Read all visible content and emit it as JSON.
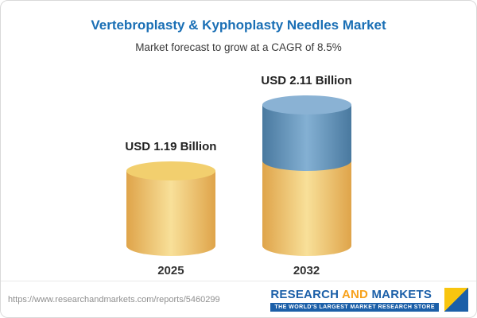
{
  "header": {
    "title": "Vertebroplasty & Kyphoplasty Needles Market",
    "subtitle": "Market forecast to grow at a CAGR of 8.5%"
  },
  "chart_data": {
    "type": "bar",
    "title": "Vertebroplasty & Kyphoplasty Needles Market",
    "subtitle": "Market forecast to grow at a CAGR of 8.5%",
    "categories": [
      "2025",
      "2032"
    ],
    "values": [
      1.19,
      2.11
    ],
    "value_labels": [
      "USD 1.19 Billion",
      "USD 2.11 Billion"
    ],
    "unit": "USD Billion",
    "cagr": "8.5%",
    "colors": {
      "bar_2025": "#f2cf6e",
      "bar_2032_bottom": "#f2cf6e",
      "bar_2032_top": "#6fa0c8",
      "title": "#1a6fb5"
    },
    "layout": {
      "legend": "none",
      "grid": false,
      "bar_style": "3d-cylinder"
    }
  },
  "footer": {
    "url": "https://www.researchandmarkets.com/reports/5460299",
    "logo": {
      "part1": "RESEARCH",
      "part2": "AND",
      "part3": "MARKETS",
      "tagline": "THE WORLD'S LARGEST MARKET RESEARCH STORE"
    }
  }
}
